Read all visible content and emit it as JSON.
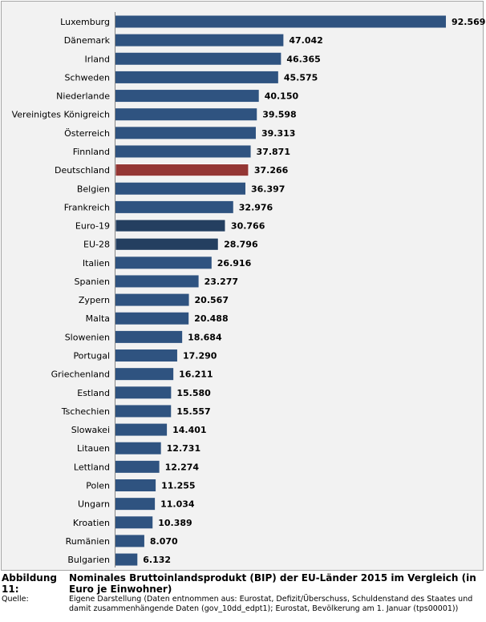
{
  "chart_data": {
    "type": "bar",
    "orientation": "horizontal",
    "categories": [
      "Luxemburg",
      "Dänemark",
      "Irland",
      "Schweden",
      "Niederlande",
      "Vereinigtes Königreich",
      "Österreich",
      "Finnland",
      "Deutschland",
      "Belgien",
      "Frankreich",
      "Euro-19",
      "EU-28",
      "Italien",
      "Spanien",
      "Zypern",
      "Malta",
      "Slowenien",
      "Portugal",
      "Griechenland",
      "Estland",
      "Tschechien",
      "Slowakei",
      "Litauen",
      "Lettland",
      "Polen",
      "Ungarn",
      "Kroatien",
      "Rumänien",
      "Bulgarien"
    ],
    "values": [
      92569,
      47042,
      46365,
      45575,
      40150,
      39598,
      39313,
      37871,
      37266,
      36397,
      32976,
      30766,
      28796,
      26916,
      23277,
      20567,
      20488,
      18684,
      17290,
      16211,
      15580,
      15557,
      14401,
      12731,
      12274,
      11255,
      11034,
      10389,
      8070,
      6132
    ],
    "value_labels": [
      "92.569",
      "47.042",
      "46.365",
      "45.575",
      "40.150",
      "39.598",
      "39.313",
      "37.871",
      "37.266",
      "36.397",
      "32.976",
      "30.766",
      "28.796",
      "26.916",
      "23.277",
      "20.567",
      "20.488",
      "18.684",
      "17.290",
      "16.211",
      "15.580",
      "15.557",
      "14.401",
      "12.731",
      "12.274",
      "11.255",
      "11.034",
      "10.389",
      "8.070",
      "6.132"
    ],
    "colors": {
      "default": "#2f5380",
      "highlight": "#943634",
      "aggregate": "#243f60"
    },
    "highlight": [
      "Deutschland"
    ],
    "aggregates": [
      "Euro-19",
      "EU-28"
    ],
    "xlim": [
      0,
      92569
    ],
    "grid": false
  },
  "caption": {
    "label": "Abbildung 11:",
    "title": "Nominales Bruttoinlandsprodukt (BIP) der EU-Länder 2015 im Vergleich (in Euro je Einwohner)",
    "source_label": "Quelle:",
    "source": "Eigene Darstellung (Daten entnommen aus: Eurostat, Defizit/Überschuss, Schuldenstand des Staates und damit zusammenhängende Daten (gov_10dd_edpt1); Eurostat, Bevölkerung am 1. Januar (tps00001))"
  }
}
